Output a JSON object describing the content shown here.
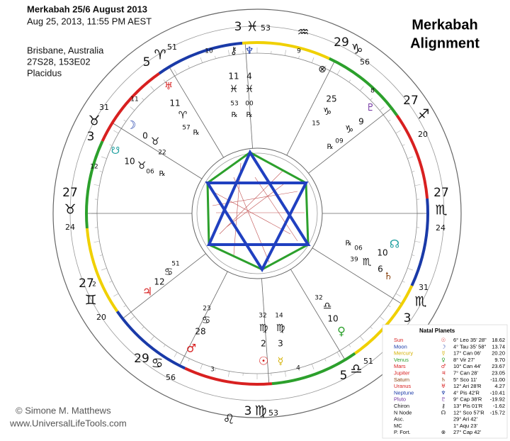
{
  "header": {
    "title": "Merkabah 25/6 August 2013",
    "datetime": "Aug 25, 2013, 11:55 PM  AEST",
    "place": "Brisbane, Australia",
    "coordinates": "27S28, 153E02",
    "house_system": "Placidus"
  },
  "banner": [
    "Merkabah",
    "Alignment"
  ],
  "credit": [
    "© Simone M. Matthews",
    "www.UniversalLifeTools.com"
  ],
  "cusps": [
    {
      "degree": "3",
      "sign": "♓",
      "minutes": "53"
    },
    {
      "degree": "29",
      "sign": "♑",
      "minutes": "56"
    },
    {
      "degree": "27",
      "sign": "♐",
      "minutes": "20"
    },
    {
      "degree": "27",
      "sign": "♏",
      "minutes": "24"
    },
    {
      "degree": "3",
      "sign": "♏",
      "minutes": "31"
    },
    {
      "degree": "5",
      "sign": "♎",
      "minutes": "51"
    },
    {
      "degree": "3",
      "sign": "♍",
      "minutes": "53"
    },
    {
      "degree": "29",
      "sign": "♋",
      "minutes": "56"
    },
    {
      "degree": "27",
      "sign": "♊",
      "minutes": "20"
    },
    {
      "degree": "27",
      "sign": "♉",
      "minutes": "24"
    },
    {
      "degree": "3",
      "sign": "♉",
      "minutes": "31"
    },
    {
      "degree": "5",
      "sign": "♈",
      "minutes": "51"
    }
  ],
  "intercepted_signs": [
    "♒",
    "♌"
  ],
  "house_numbers": [
    "10",
    "9",
    "8",
    "11",
    "12",
    "2",
    "3",
    "4"
  ],
  "planets": [
    {
      "glyph": "♅",
      "degree": "11",
      "sign": "♈",
      "minutes": "57",
      "retro": "℞"
    },
    {
      "glyph": "☽",
      "degree": "0",
      "sign": "♉",
      "minutes": "22"
    },
    {
      "glyph": "☋",
      "degree": "10",
      "sign": "♉",
      "minutes": "06",
      "retro": "℞"
    },
    {
      "glyph": "⚷",
      "degree": "11",
      "sign": "♓",
      "minutes": "53",
      "retro": "℞"
    },
    {
      "glyph": "♆",
      "degree": "4",
      "sign": "♓",
      "minutes": "00",
      "retro": "℞"
    },
    {
      "glyph": "⊗",
      "degree": "25",
      "sign": "♑",
      "minutes": "15"
    },
    {
      "glyph": "♇",
      "degree": "9",
      "sign": "♑",
      "minutes": "09",
      "retro": "℞"
    },
    {
      "glyph": "☊",
      "degree": "10",
      "sign": "♏",
      "minutes": "06",
      "retro": "℞"
    },
    {
      "glyph": "♄",
      "degree": "6",
      "minutes": "39"
    },
    {
      "glyph": "♀",
      "degree": "10",
      "sign": "♎",
      "minutes": "32"
    },
    {
      "glyph": "☉",
      "degree": "2",
      "sign": "♍",
      "minutes": "32"
    },
    {
      "glyph": "☿",
      "degree": "3",
      "sign": "♍",
      "minutes": "14"
    },
    {
      "glyph": "♃",
      "degree": "12",
      "sign": "♋",
      "minutes": "51"
    },
    {
      "glyph": "♂",
      "degree": "28",
      "sign": "♋",
      "minutes": "23"
    }
  ],
  "table": {
    "title": "Natal Planets",
    "rows": [
      {
        "name": "Sun",
        "glyph": "☉",
        "position": "6° Leo 35' 28\"",
        "speed": "18.62"
      },
      {
        "name": "Moon",
        "glyph": "☽",
        "position": "4° Tau 35' 58\"",
        "speed": "13.74"
      },
      {
        "name": "Mercury",
        "glyph": "☿",
        "position": "17° Can 06'",
        "speed": "20.20"
      },
      {
        "name": "Venus",
        "glyph": "♀",
        "position": "8° Vir 27'",
        "speed": "9.70"
      },
      {
        "name": "Mars",
        "glyph": "♂",
        "position": "10° Can 44'",
        "speed": "23.67"
      },
      {
        "name": "Jupiter",
        "glyph": "♃",
        "position": "7° Can 28'",
        "speed": "23.05"
      },
      {
        "name": "Saturn",
        "glyph": "♄",
        "position": "5° Sco 11'",
        "speed": "-11.00"
      },
      {
        "name": "Uranus",
        "glyph": "♅",
        "position": "12° Ari 28'R",
        "speed": "4.27"
      },
      {
        "name": "Neptune",
        "glyph": "♆",
        "position": "4° Pis 42'R",
        "speed": "-10.41"
      },
      {
        "name": "Pluto",
        "glyph": "♇",
        "position": "9° Cap 38'R",
        "speed": "-19.92"
      },
      {
        "name": "Chiron",
        "glyph": "⚷",
        "position": "13° Pis 01'R",
        "speed": "-1.62"
      },
      {
        "name": "N Node",
        "glyph": "☊",
        "position": "12° Sco 57'R",
        "speed": "-15.72"
      },
      {
        "name": "Asc.",
        "position": "29° Ari 42'"
      },
      {
        "name": "MC",
        "position": "1° Aqu 23'"
      },
      {
        "name": "P. Fort.",
        "glyph": "⊗",
        "position": "27° Cap 42'"
      }
    ]
  }
}
